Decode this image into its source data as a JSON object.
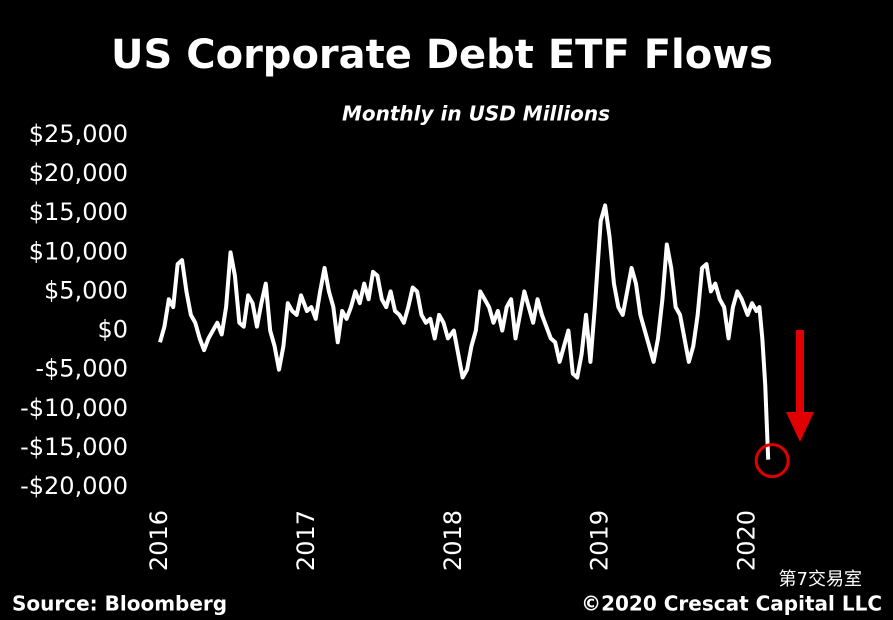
{
  "chart_data": {
    "type": "line",
    "title": "US Corporate Debt ETF Flows",
    "subtitle": "Monthly in USD Millions",
    "source": "Source: Bloomberg",
    "copyright": "©2020 Crescat Capital LLC",
    "watermark": "第7交易室",
    "x": [
      2016.0,
      2016.03,
      2016.06,
      2016.09,
      2016.12,
      2016.15,
      2016.18,
      2016.21,
      2016.24,
      2016.27,
      2016.3,
      2016.33,
      2016.36,
      2016.39,
      2016.42,
      2016.45,
      2016.48,
      2016.51,
      2016.54,
      2016.57,
      2016.6,
      2016.63,
      2016.66,
      2016.69,
      2016.72,
      2016.75,
      2016.78,
      2016.81,
      2016.84,
      2016.87,
      2016.9,
      2016.93,
      2016.96,
      2017.0,
      2017.03,
      2017.06,
      2017.09,
      2017.12,
      2017.15,
      2017.18,
      2017.21,
      2017.24,
      2017.27,
      2017.3,
      2017.33,
      2017.36,
      2017.39,
      2017.42,
      2017.45,
      2017.48,
      2017.51,
      2017.54,
      2017.57,
      2017.6,
      2017.63,
      2017.66,
      2017.69,
      2017.72,
      2017.75,
      2017.78,
      2017.81,
      2017.84,
      2017.87,
      2017.9,
      2017.93,
      2017.96,
      2018.0,
      2018.03,
      2018.06,
      2018.09,
      2018.12,
      2018.15,
      2018.18,
      2018.21,
      2018.24,
      2018.27,
      2018.3,
      2018.33,
      2018.36,
      2018.39,
      2018.42,
      2018.45,
      2018.48,
      2018.51,
      2018.54,
      2018.57,
      2018.6,
      2018.63,
      2018.66,
      2018.69,
      2018.72,
      2018.75,
      2018.78,
      2018.81,
      2018.84,
      2018.87,
      2018.9,
      2018.93,
      2018.96,
      2019.0,
      2019.03,
      2019.06,
      2019.09,
      2019.12,
      2019.15,
      2019.18,
      2019.21,
      2019.24,
      2019.27,
      2019.3,
      2019.33,
      2019.36,
      2019.39,
      2019.42,
      2019.45,
      2019.48,
      2019.51,
      2019.54,
      2019.57,
      2019.6,
      2019.63,
      2019.66,
      2019.69,
      2019.72,
      2019.75,
      2019.78,
      2019.81,
      2019.84,
      2019.87,
      2019.9,
      2019.93,
      2019.96,
      2020.0,
      2020.03,
      2020.06,
      2020.08,
      2020.1,
      2020.12,
      2020.14
    ],
    "series": [
      {
        "color": "#ffffff",
        "values": [
          -1500,
          500,
          4000,
          3000,
          8500,
          9000,
          5000,
          2000,
          1000,
          -1000,
          -2500,
          -1000,
          0,
          1000,
          -500,
          3000,
          10000,
          7000,
          1000,
          500,
          4500,
          3500,
          500,
          3500,
          6000,
          0,
          -2000,
          -5000,
          -2000,
          3500,
          2500,
          2000,
          4500,
          2500,
          3000,
          1500,
          5000,
          8000,
          5000,
          3000,
          -1500,
          2500,
          1500,
          3000,
          5000,
          3500,
          6000,
          4000,
          7500,
          7000,
          4000,
          3000,
          5000,
          2500,
          2000,
          1000,
          3000,
          5500,
          5000,
          2000,
          1000,
          1500,
          -1000,
          2000,
          1000,
          -1000,
          0,
          -3000,
          -6000,
          -5000,
          -2000,
          0,
          5000,
          4000,
          3000,
          1000,
          2500,
          0,
          3000,
          4000,
          -1000,
          2000,
          5000,
          3000,
          1000,
          4000,
          2000,
          500,
          -1000,
          -1500,
          -4000,
          -2000,
          0,
          -5500,
          -6000,
          -3000,
          2000,
          -4000,
          3000,
          14000,
          16000,
          12000,
          6000,
          3000,
          2000,
          5000,
          8000,
          6000,
          2000,
          0,
          -2000,
          -4000,
          -1000,
          4000,
          11000,
          8000,
          3000,
          2000,
          -1000,
          -4000,
          -2000,
          2000,
          8000,
          8500,
          5000,
          6000,
          4000,
          3000,
          -1000,
          3000,
          5000,
          4000,
          2000,
          3500,
          2500,
          3000,
          -1000,
          -7000,
          -16500
        ]
      }
    ],
    "xlim": [
      2016,
      2020.2
    ],
    "xticks": [
      2016,
      2017,
      2018,
      2019,
      2020
    ],
    "ylim": [
      -20000,
      25000
    ],
    "yticks": [
      {
        "value": 25000,
        "label": "$25,000"
      },
      {
        "value": 20000,
        "label": "$20,000"
      },
      {
        "value": 15000,
        "label": "$15,000"
      },
      {
        "value": 10000,
        "label": "$10,000"
      },
      {
        "value": 5000,
        "label": "$5,000"
      },
      {
        "value": 0,
        "label": "$0"
      },
      {
        "value": -5000,
        "label": "-$5,000"
      },
      {
        "value": -10000,
        "label": "-$10,000"
      },
      {
        "value": -15000,
        "label": "-$15,000"
      },
      {
        "value": -20000,
        "label": "-$20,000"
      }
    ],
    "grid": false
  }
}
